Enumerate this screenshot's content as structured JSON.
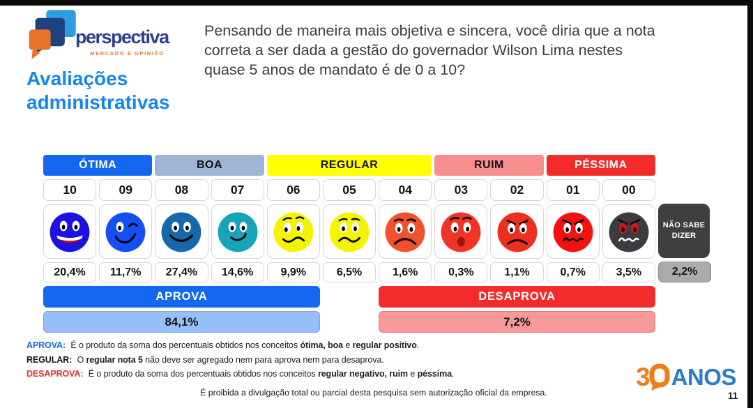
{
  "chart_data": {
    "type": "table",
    "title": "Pensando de maneira mais objetiva e sincera, você diria que a nota correta a ser dada a gestão do governador Wilson Lima nestes quase 5 anos de mandato é de 0 a 10?",
    "categories": [
      "10",
      "09",
      "08",
      "07",
      "06",
      "05",
      "04",
      "03",
      "02",
      "01",
      "00",
      "NÃO SABE DIZER"
    ],
    "values": [
      20.4,
      11.7,
      27.4,
      14.6,
      9.9,
      6.5,
      1.6,
      0.3,
      1.1,
      0.7,
      3.5,
      2.2
    ],
    "groups": [
      {
        "label": "ÓTIMA",
        "notes": [
          "10",
          "09"
        ]
      },
      {
        "label": "BOA",
        "notes": [
          "08",
          "07"
        ]
      },
      {
        "label": "REGULAR",
        "notes": [
          "06",
          "05",
          "04"
        ]
      },
      {
        "label": "RUIM",
        "notes": [
          "03",
          "02"
        ]
      },
      {
        "label": "PÉSSIMA",
        "notes": [
          "01",
          "00"
        ]
      }
    ],
    "aggregates": {
      "APROVA": 84.1,
      "DESAPROVA": 7.2
    },
    "value_format": "percent-comma-decimal"
  },
  "brand": {
    "name": "perspectiva",
    "tagline": "MERCADO E OPINIÃO",
    "name_color": "#2c3e8e",
    "tagline_color": "#e8742c"
  },
  "slide": {
    "title": "Avaliações administrativas",
    "title_color": "#1585ef",
    "question_lines": [
      "Pensando de maneira mais objetiva e sincera, você diria que a nota",
      "correta a ser dada a gestão do governador Wilson Lima nestes",
      "quase 5 anos de mandato é de 0 a 10?"
    ]
  },
  "chart": {
    "categories": [
      {
        "label": "ÓTIMA",
        "span": 2,
        "bg": "#1468f0",
        "fg": "#ffffff"
      },
      {
        "label": "BOA",
        "span": 2,
        "bg": "#9eb5d4",
        "fg": "#141414"
      },
      {
        "label": "REGULAR",
        "span": 3,
        "bg": "#ffff00",
        "fg": "#141414"
      },
      {
        "label": "RUIM",
        "span": 2,
        "bg": "#f78d8d",
        "fg": "#141414"
      },
      {
        "label": "PÉSSIMA",
        "span": 2,
        "bg": "#f22b2b",
        "fg": "#ffffff"
      }
    ],
    "columns": [
      {
        "note": "10",
        "pct": "20,4%",
        "face_color": "#1c13e2",
        "expression": "big-grin"
      },
      {
        "note": "09",
        "pct": "11,7%",
        "face_color": "#134ff2",
        "expression": "wink-smile"
      },
      {
        "note": "08",
        "pct": "27,4%",
        "face_color": "#1767ab",
        "expression": "smile"
      },
      {
        "note": "07",
        "pct": "14,6%",
        "face_color": "#17a3b8",
        "expression": "soft-smile"
      },
      {
        "note": "06",
        "pct": "9,9%",
        "face_color": "#f4f400",
        "expression": "unsure-glance"
      },
      {
        "note": "05",
        "pct": "6,5%",
        "face_color": "#f4f400",
        "expression": "unsure"
      },
      {
        "note": "04",
        "pct": "1,6%",
        "face_color": "#f2512e",
        "expression": "sad"
      },
      {
        "note": "03",
        "pct": "0,3%",
        "face_color": "#ef3526",
        "expression": "worried-open"
      },
      {
        "note": "02",
        "pct": "1,1%",
        "face_color": "#ee2f20",
        "expression": "angry-frown"
      },
      {
        "note": "01",
        "pct": "0,7%",
        "face_color": "#f31111",
        "expression": "angry-zigzag"
      },
      {
        "note": "00",
        "pct": "3,5%",
        "face_color": "#3b3b40",
        "expression": "furious-zigzag"
      }
    ],
    "no_answer": {
      "label_lines": [
        "NÃO SABE",
        "DIZER"
      ],
      "pct": "2,2%",
      "box_color": "#3f3f3f",
      "pct_bg": "#ababab"
    },
    "aprova": {
      "label": "APROVA",
      "pct": "84,1%",
      "bar_color": "#1468f0",
      "pct_bg": "#96bef8"
    },
    "desaprova": {
      "label": "DESAPROVA",
      "pct": "7,2%",
      "bar_color": "#f22b2b",
      "pct_bg": "#f89898"
    }
  },
  "footnotes": [
    {
      "label": "APROVA:",
      "color": "#1468f0",
      "segments": [
        [
          " É o produto da soma dos percentuais obtidos nos conceitos ",
          0
        ],
        [
          "ótima, boa",
          1
        ],
        [
          " e ",
          0
        ],
        [
          "regular positivo",
          1
        ],
        [
          ".",
          0
        ]
      ]
    },
    {
      "label": "REGULAR:",
      "color": "#141414",
      "segments": [
        [
          " O ",
          0
        ],
        [
          "regular nota 5",
          1
        ],
        [
          " não deve ser agregado nem para aprova nem para desaprova.",
          0
        ]
      ]
    },
    {
      "label": "DESAPROVA:",
      "color": "#e82e2e",
      "segments": [
        [
          " É o produto da soma dos percentuais obtidos nos conceitos ",
          0
        ],
        [
          "regular negativo, ruim",
          1
        ],
        [
          " e ",
          0
        ],
        [
          "péssima",
          1
        ],
        [
          ".",
          0
        ]
      ]
    }
  ],
  "footer": {
    "disclaimer": "É proibida a divulgação total ou parcial desta pesquisa sem autorização oficial da empresa.",
    "anniversary_number": "3",
    "anniversary_word": "ANOS",
    "anniversary_orange": "#ef7d18",
    "anniversary_blue": "#2b7cc9",
    "page_number": "11"
  }
}
